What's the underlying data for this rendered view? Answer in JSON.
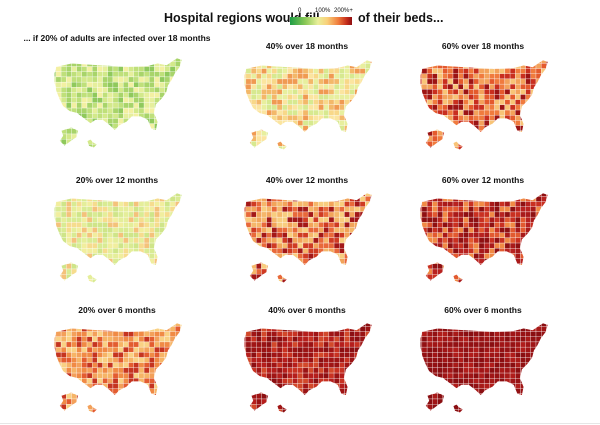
{
  "header": {
    "title_prefix": "Hospital regions would fill",
    "title_suffix": "of their beds...",
    "legend": {
      "label_min": "0",
      "label_mid": "100%",
      "label_max": "200%+"
    }
  },
  "panels": [
    {
      "title": "... if 20% of adults are infected over 18 months",
      "scenario_infected": "20%",
      "scenario_period": "18 months",
      "palette": [
        "#bfe07a",
        "#d3e98a",
        "#a8d46a",
        "#e6ef9c",
        "#8fc95c",
        "#f3f0a2"
      ]
    },
    {
      "title": "40% over 18 months",
      "scenario_infected": "40%",
      "scenario_period": "18 months",
      "palette": [
        "#f8d889",
        "#f3b869",
        "#e8ef9e",
        "#f09a52",
        "#fbe5a0",
        "#d7e990"
      ]
    },
    {
      "title": "60% over 18 months",
      "scenario_infected": "60%",
      "scenario_period": "18 months",
      "palette": [
        "#f07b3e",
        "#e45a2d",
        "#f3a25b",
        "#c92f1f",
        "#f8c477",
        "#9c1414"
      ]
    },
    {
      "title": "20% over 12 months",
      "scenario_infected": "20%",
      "scenario_period": "12 months",
      "palette": [
        "#e5ee9a",
        "#f6dc8e",
        "#cfe589",
        "#f4c27b",
        "#d9eb93",
        "#f1ee9e"
      ]
    },
    {
      "title": "40% over 12 months",
      "scenario_infected": "40%",
      "scenario_period": "12 months",
      "palette": [
        "#f2a45a",
        "#e8693a",
        "#f8cd7e",
        "#cf3b23",
        "#f5b76a",
        "#a31818"
      ]
    },
    {
      "title": "60% over 12 months",
      "scenario_infected": "60%",
      "scenario_period": "12 months",
      "palette": [
        "#a91a1a",
        "#c93021",
        "#8f1012",
        "#e25a30",
        "#b82220",
        "#f08a45"
      ]
    },
    {
      "title": "20% over 6 months",
      "scenario_infected": "20%",
      "scenario_period": "6 months",
      "palette": [
        "#f08a45",
        "#e35c30",
        "#f6b466",
        "#c53420",
        "#f9d184",
        "#f3a05a"
      ]
    },
    {
      "title": "40% over 6 months",
      "scenario_infected": "40%",
      "scenario_period": "6 months",
      "palette": [
        "#a01515",
        "#b51e1c",
        "#8c0f12",
        "#c83222",
        "#9a1314",
        "#d2492a"
      ]
    },
    {
      "title": "60% over 6 months",
      "scenario_infected": "60%",
      "scenario_period": "6 months",
      "palette": [
        "#921113",
        "#a01516",
        "#8a0e11",
        "#a81a18",
        "#971214",
        "#b01d1b"
      ]
    }
  ]
}
